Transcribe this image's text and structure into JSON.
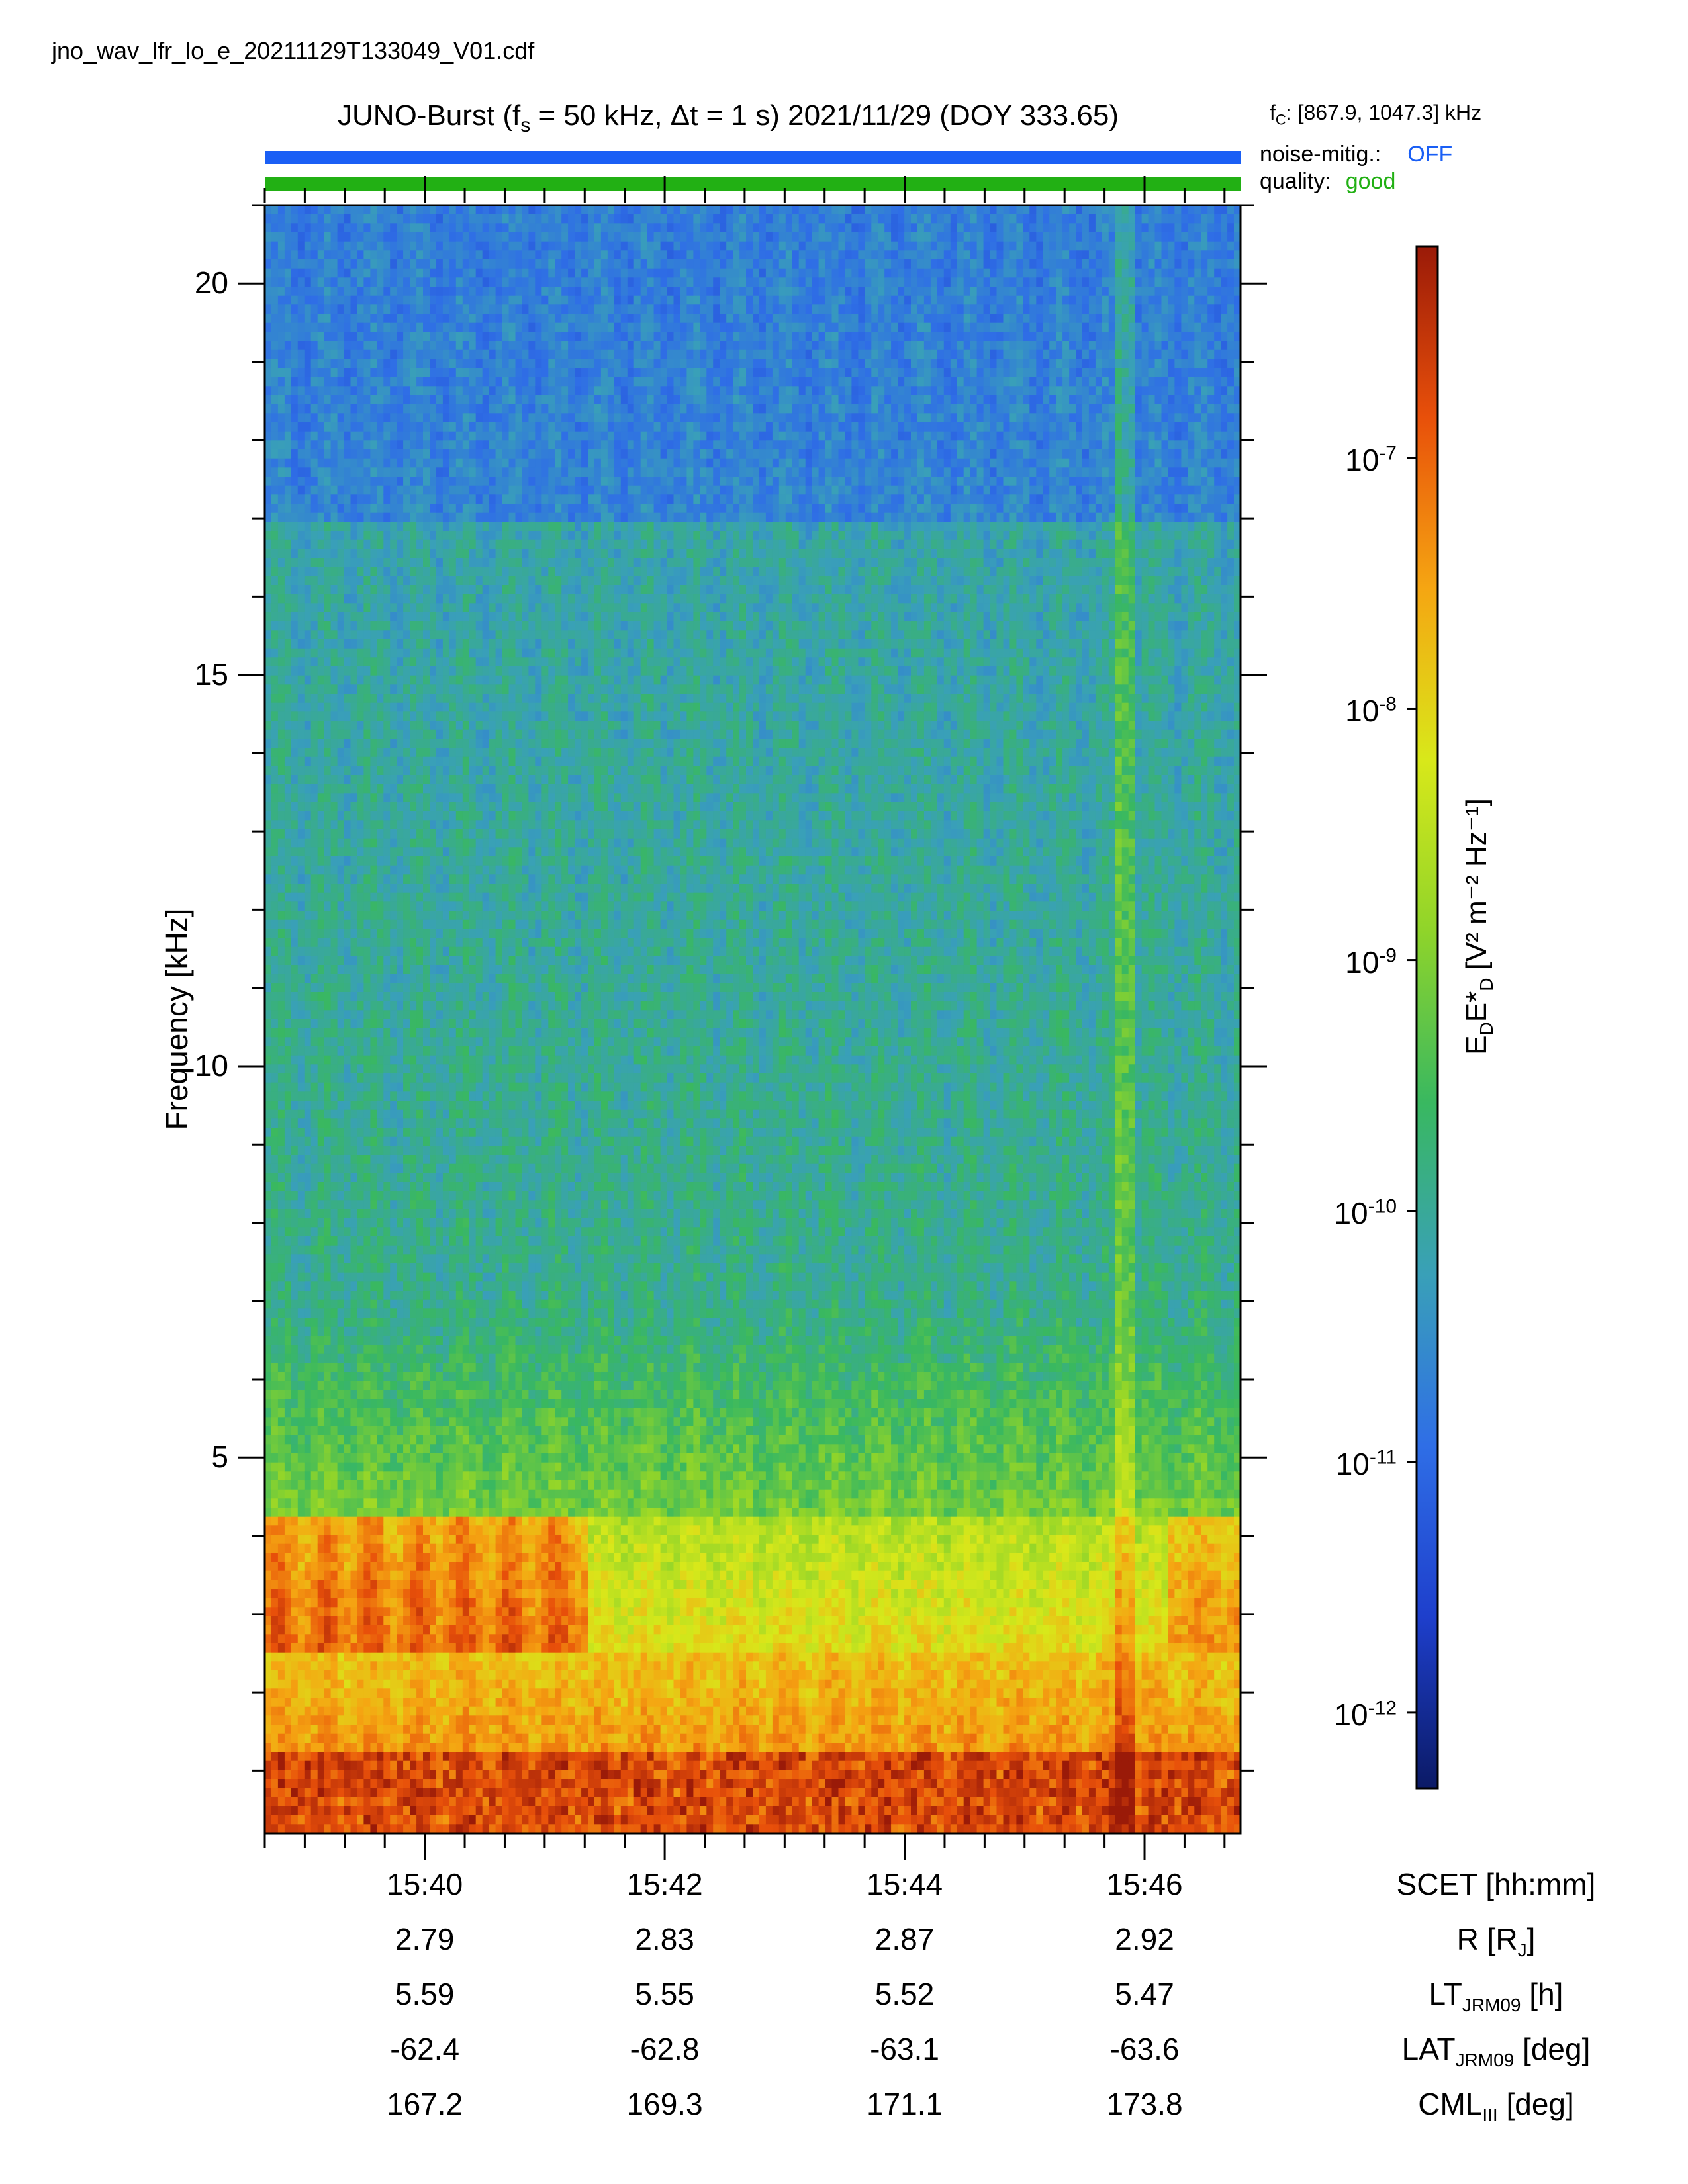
{
  "filename": "jno_wav_lfr_lo_e_20211129T133049_V01.cdf",
  "title": {
    "main": "JUNO-Burst (f",
    "fs_sub": "s",
    "fs_rest": " = 50 kHz, Δt = 1 s)  2021/11/29 (DOY 333.65)"
  },
  "fc": {
    "prefix": "f",
    "sub": "C",
    "value": ": [867.9, 1047.3] kHz"
  },
  "noise": {
    "label": "noise-mitig.:",
    "value": "OFF",
    "color": "#1a5ff5"
  },
  "quality": {
    "label": "quality:",
    "value": "good",
    "color": "#22b014"
  },
  "colors": {
    "noise_bar": "#1a5ff5",
    "quality_bar": "#22b014"
  },
  "chart_data": {
    "type": "heatmap",
    "ylabel": "Frequency [kHz]",
    "ylim": [
      0.2,
      21.0
    ],
    "yticks": [
      5,
      10,
      15,
      20
    ],
    "yticklabels": [
      "5",
      "10",
      "15",
      "20"
    ],
    "xlim_minutes": [
      "15:38:40",
      "15:46:48"
    ],
    "xticks": [
      "15:40",
      "15:42",
      "15:44",
      "15:46"
    ],
    "colorbar": {
      "label_main": "E",
      "label_sub1": "D",
      "label_mid": "E*",
      "label_sub2": "D",
      "label_units": " [V² m⁻² Hz⁻¹]",
      "scale": "log",
      "range": [
        5e-13,
        7e-07
      ],
      "ticks": [
        {
          "base": "10",
          "exp": "-7",
          "value": 1e-07
        },
        {
          "base": "10",
          "exp": "-8",
          "value": 1e-08
        },
        {
          "base": "10",
          "exp": "-9",
          "value": 1e-09
        },
        {
          "base": "10",
          "exp": "-10",
          "value": 1e-10
        },
        {
          "base": "10",
          "exp": "-11",
          "value": 1e-11
        },
        {
          "base": "10",
          "exp": "-12",
          "value": 1e-12
        }
      ],
      "colormap": [
        "#0b1a66",
        "#1e3fcc",
        "#2f6ee6",
        "#39a0b8",
        "#39b860",
        "#8fd42a",
        "#d8e81a",
        "#f5a612",
        "#e8500a",
        "#9a1a08"
      ]
    },
    "features": {
      "low_freq_band_kHz": [
        0.2,
        1.2
      ],
      "intense_band_kHz": [
        2.5,
        4.3
      ],
      "intense_band_end_time": "15:41:20",
      "noise_floor": 1e-12
    }
  },
  "ephemeris": {
    "rows": [
      {
        "name": "SCET [hh:mm]",
        "values": [
          "15:40",
          "15:42",
          "15:44",
          "15:46"
        ]
      },
      {
        "name_main": "R [R",
        "name_sub": "J",
        "name_end": "]",
        "values": [
          "2.79",
          "2.83",
          "2.87",
          "2.92"
        ]
      },
      {
        "name_main": "LT",
        "name_sub": "JRM09",
        "name_end": " [h]",
        "values": [
          "5.59",
          "5.55",
          "5.52",
          "5.47"
        ]
      },
      {
        "name_main": "LAT",
        "name_sub": "JRM09",
        "name_end": " [deg]",
        "values": [
          "-62.4",
          "-62.8",
          "-63.1",
          "-63.6"
        ]
      },
      {
        "name_main": "CML",
        "name_sub": "III",
        "name_end": " [deg]",
        "values": [
          "167.2",
          "169.3",
          "171.1",
          "173.8"
        ]
      }
    ]
  }
}
